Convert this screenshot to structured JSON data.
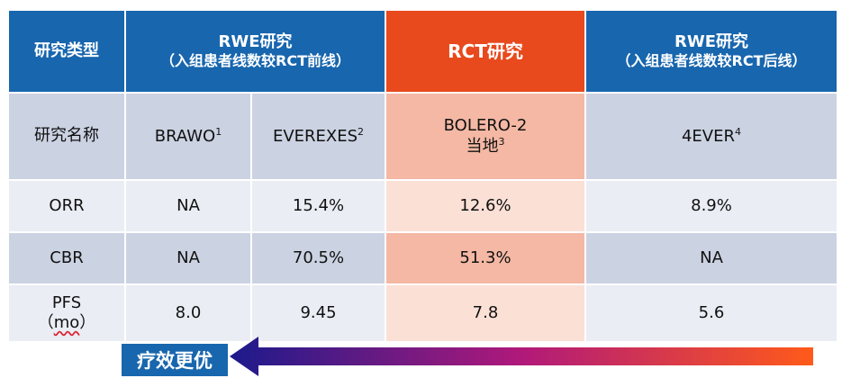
{
  "header": {
    "type_label": "研究类型",
    "rwe_before": {
      "line1": "RWE研究",
      "line2": "（入组患者线数较RCT前线）"
    },
    "rct": "RCT研究",
    "rwe_after": {
      "line1": "RWE研究",
      "line2": "（入组患者线数较RCT后线）"
    }
  },
  "rows": {
    "name": {
      "label": "研究名称",
      "brawo": "BRAWO",
      "brawo_sup": "1",
      "everexes": "EVEREXES",
      "everexes_sup": "2",
      "bolero_line1": "BOLERO-2",
      "bolero_line2": "当地",
      "bolero_sup": "3",
      "fourever": "4EVER",
      "fourever_sup": "4"
    },
    "orr": {
      "label": "ORR",
      "brawo": "NA",
      "everexes": "15.4%",
      "bolero": "12.6%",
      "fourever": "8.9%"
    },
    "cbr": {
      "label": "CBR",
      "brawo": "NA",
      "everexes": "70.5%",
      "bolero": "51.3%",
      "fourever": "NA"
    },
    "pfs": {
      "label_line1": "PFS",
      "label_line2_open": "（",
      "label_line2_unit": "mo",
      "label_line2_close": "）",
      "brawo": "8.0",
      "everexes": "9.45",
      "bolero": "7.8",
      "fourever": "5.6"
    }
  },
  "legend": {
    "label": "疗效更优"
  },
  "colors": {
    "header_blue": "#1866ae",
    "header_rct": "#e8491d",
    "arrow_start": "#1c1a8c",
    "arrow_end": "#ff5a1a"
  }
}
